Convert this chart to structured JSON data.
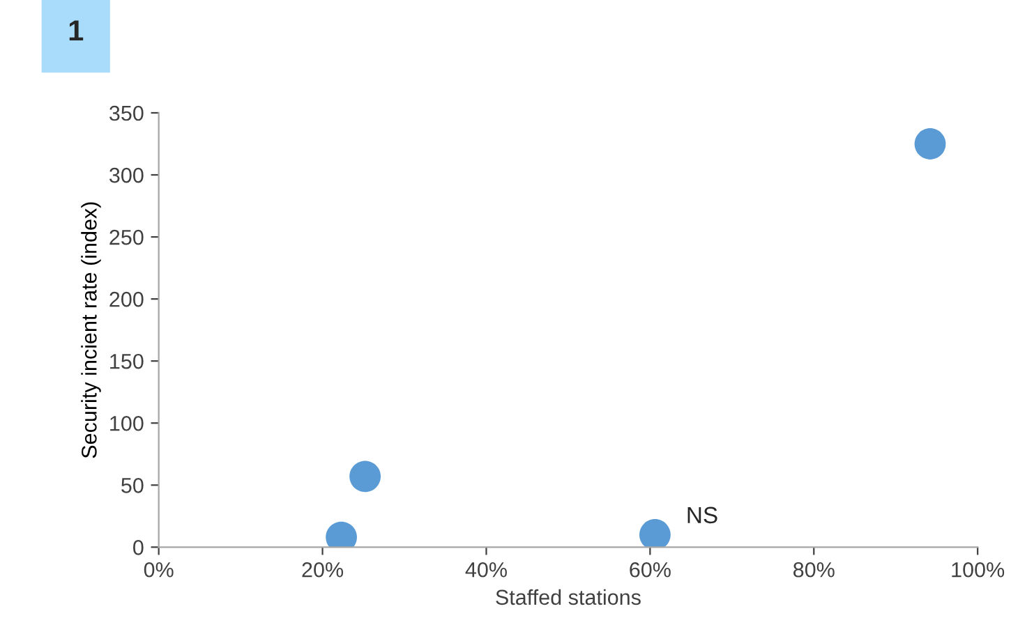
{
  "chart_data": {
    "type": "scatter",
    "title": "1",
    "xlabel": "Staffed stations",
    "ylabel": "Security incient rate (index)",
    "x": [
      22.3,
      25.2,
      60.6,
      94.2
    ],
    "values": [
      8,
      57,
      10,
      325
    ],
    "color": "#5b9bd5",
    "marker": "circle",
    "xlim": [
      0,
      100
    ],
    "xticks": [
      {
        "value": 0,
        "label": "0%"
      },
      {
        "value": 20,
        "label": "20%"
      },
      {
        "value": 40,
        "label": "40%"
      },
      {
        "value": 60,
        "label": "60%"
      },
      {
        "value": 80,
        "label": "80%"
      },
      {
        "value": 100,
        "label": "100%"
      }
    ],
    "ylim": [
      0,
      350
    ],
    "yticks": [
      0,
      50,
      100,
      150,
      200,
      250,
      300,
      350
    ],
    "grid": false,
    "legend": false,
    "annotations": [
      {
        "text": "NS",
        "x": 60.6,
        "y": 10
      }
    ]
  }
}
